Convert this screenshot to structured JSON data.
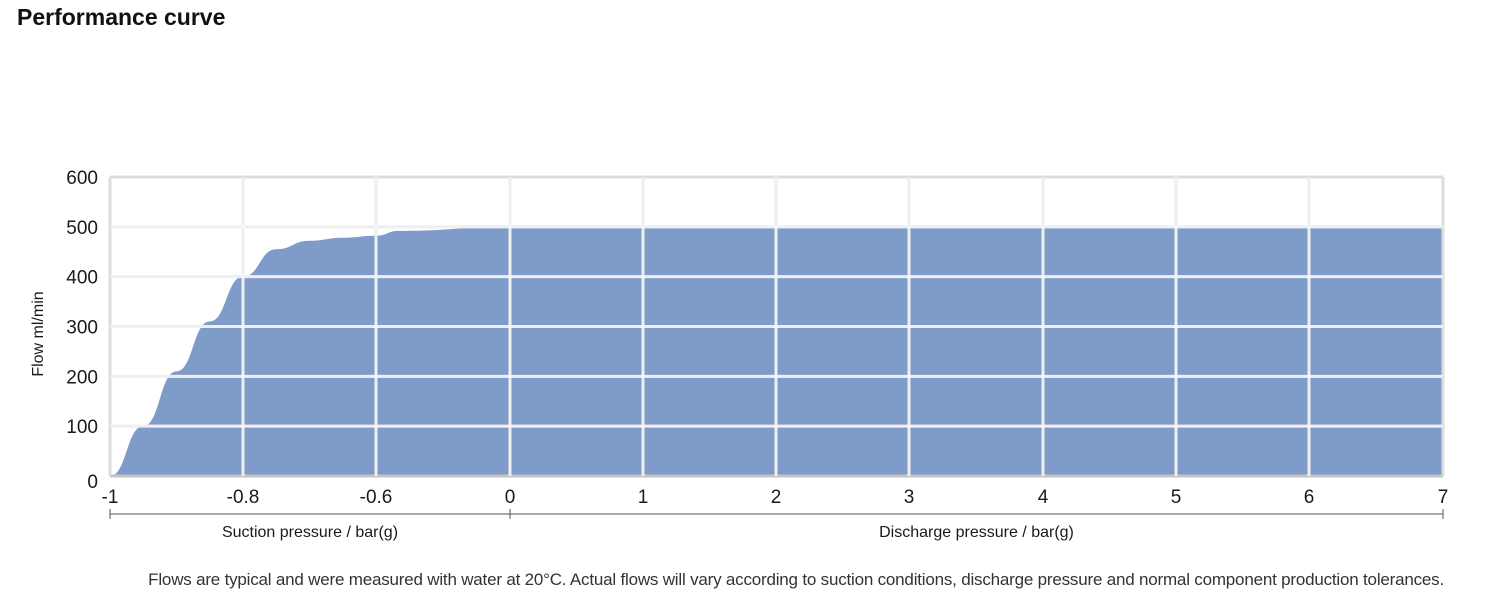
{
  "page_title": "Performance curve",
  "footnote": "Flows are typical and were measured with water at 20°C. Actual flows will vary according to suction conditions, discharge pressure and normal component production tolerances.",
  "chart_data": {
    "type": "area",
    "title": "",
    "ylabel": "Flow ml/min",
    "ylim": [
      0,
      600
    ],
    "y_ticks": [
      0,
      100,
      200,
      300,
      400,
      500,
      600
    ],
    "x_tick_labels": [
      "-1",
      "-0.8",
      "-0.6",
      "0",
      "1",
      "2",
      "3",
      "4",
      "5",
      "6",
      "7"
    ],
    "x_sections": [
      {
        "label": "Suction pressure / bar(g)",
        "from": "-1",
        "to": "0"
      },
      {
        "label": "Discharge pressure / bar(g)",
        "from": "0",
        "to": "7"
      }
    ],
    "grid": true,
    "fill_color": "#7f9bca",
    "series": [
      {
        "x": [
          "-1",
          "-0.95",
          "-0.9",
          "-0.85",
          "-0.8",
          "-0.75",
          "-0.7",
          "-0.65",
          "-0.6",
          "-0.5",
          "0",
          "1",
          "2",
          "3",
          "4",
          "5",
          "6",
          "7"
        ],
        "values": [
          0,
          100,
          210,
          310,
          400,
          455,
          472,
          478,
          482,
          492,
          500,
          500,
          500,
          500,
          500,
          500,
          500,
          500
        ]
      }
    ]
  }
}
